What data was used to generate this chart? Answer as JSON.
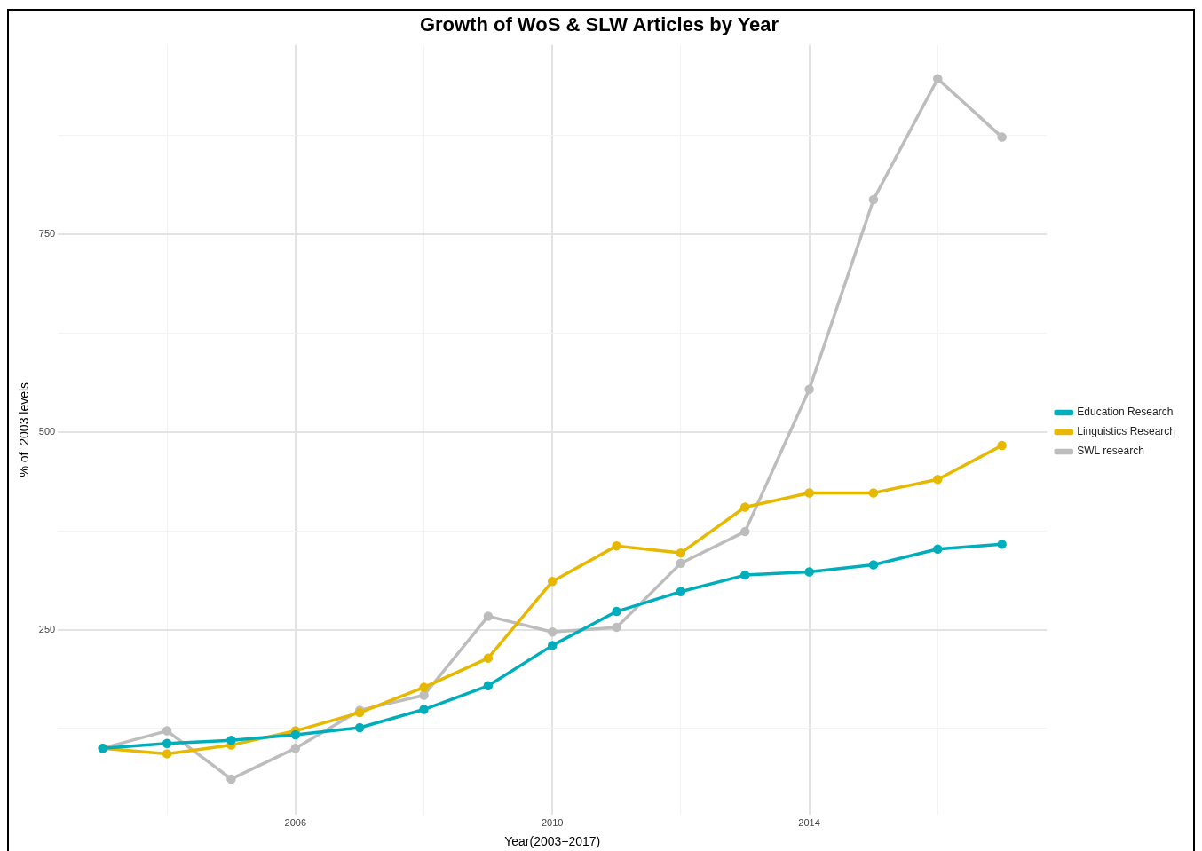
{
  "chart_data": {
    "type": "line",
    "title": "Growth of WoS & SLW Articles by Year",
    "xlabel": "Year(2003−2017)",
    "ylabel": "% of  2003 levels",
    "x": [
      2003,
      2004,
      2005,
      2006,
      2007,
      2008,
      2009,
      2010,
      2011,
      2012,
      2013,
      2014,
      2015,
      2016,
      2017
    ],
    "series": [
      {
        "name": "Education Research",
        "color": "#00aebb",
        "values": [
          100,
          106,
          110,
          117,
          126,
          149,
          179,
          230,
          273,
          298,
          319,
          323,
          332,
          352,
          358
        ]
      },
      {
        "name": "Linguistics Research",
        "color": "#e7b800",
        "values": [
          100,
          93,
          104,
          122,
          145,
          177,
          214,
          311,
          356,
          347,
          405,
          423,
          423,
          440,
          483
        ]
      },
      {
        "name": "SWL research",
        "color": "#bdbdbd",
        "values": [
          100,
          122,
          61,
          100,
          148,
          167,
          267,
          247,
          253,
          334,
          374,
          554,
          794,
          947,
          873
        ]
      }
    ],
    "xlim": [
      2002.3,
      2017.7
    ],
    "xticks": [
      {
        "value": 2004,
        "label": null
      },
      2006,
      {
        "value": 2008,
        "label": null
      },
      2010,
      {
        "value": 2012,
        "label": null
      },
      2014,
      {
        "value": 2016,
        "label": null
      }
    ],
    "ylim": [
      16,
      990
    ],
    "yticks": [
      {
        "value": 125,
        "label": null
      },
      250,
      {
        "value": 375,
        "label": null
      },
      500,
      {
        "value": 625,
        "label": null
      },
      750,
      {
        "value": 875,
        "label": null
      }
    ],
    "grid": true,
    "legend": "right",
    "marker": "circle",
    "line_style": "solid"
  }
}
